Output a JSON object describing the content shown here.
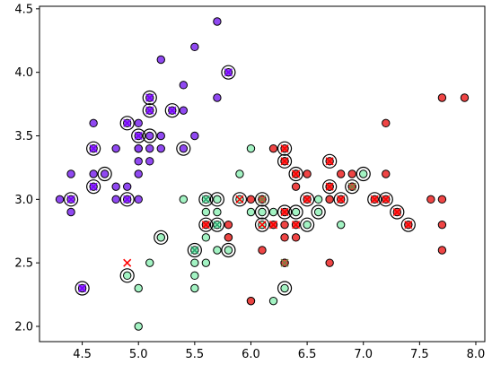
{
  "chart_data": {
    "type": "scatter",
    "title": "",
    "xlabel": "",
    "ylabel": "",
    "xlim": [
      4.12,
      8.08
    ],
    "ylim": [
      1.88,
      4.52
    ],
    "xticks": [
      "4.5",
      "5.0",
      "5.5",
      "6.0",
      "6.5",
      "7.0",
      "7.5",
      "8.0"
    ],
    "yticks": [
      "2.0",
      "2.5",
      "3.0",
      "3.5",
      "4.0",
      "4.5"
    ],
    "grid": false,
    "colors": {
      "purple": "#8a3ff0",
      "green": "#9ef2c0",
      "red": "#ee3b3b",
      "cross_red": "#ff0000",
      "cross_purple": "#7a00ff",
      "cross_green": "#2aa870",
      "cross_olive": "#7f8040",
      "edge": "#000000"
    },
    "series": [
      {
        "class": "purple",
        "values": [
          [
            4.3,
            3.0
          ],
          [
            4.4,
            2.9
          ],
          [
            4.4,
            3.0
          ],
          [
            4.4,
            3.2
          ],
          [
            4.5,
            2.3
          ],
          [
            4.6,
            3.1
          ],
          [
            4.6,
            3.2
          ],
          [
            4.6,
            3.4
          ],
          [
            4.6,
            3.6
          ],
          [
            4.7,
            3.2
          ],
          [
            4.8,
            3.0
          ],
          [
            4.8,
            3.1
          ],
          [
            4.8,
            3.4
          ],
          [
            4.9,
            3.0
          ],
          [
            4.9,
            3.1
          ],
          [
            4.9,
            3.6
          ],
          [
            5.0,
            3.0
          ],
          [
            5.0,
            3.2
          ],
          [
            5.0,
            3.3
          ],
          [
            5.0,
            3.4
          ],
          [
            5.0,
            3.5
          ],
          [
            5.0,
            3.6
          ],
          [
            5.1,
            3.3
          ],
          [
            5.1,
            3.4
          ],
          [
            5.1,
            3.5
          ],
          [
            5.1,
            3.7
          ],
          [
            5.1,
            3.8
          ],
          [
            5.2,
            3.4
          ],
          [
            5.2,
            3.5
          ],
          [
            5.2,
            4.1
          ],
          [
            5.3,
            3.7
          ],
          [
            5.4,
            3.4
          ],
          [
            5.4,
            3.7
          ],
          [
            5.4,
            3.9
          ],
          [
            5.5,
            3.5
          ],
          [
            5.5,
            4.2
          ],
          [
            5.7,
            3.8
          ],
          [
            5.7,
            4.4
          ],
          [
            5.8,
            4.0
          ],
          [
            5.0,
            3.4
          ]
        ]
      },
      {
        "class": "green",
        "values": [
          [
            4.9,
            2.4
          ],
          [
            5.0,
            2.0
          ],
          [
            5.0,
            2.3
          ],
          [
            5.1,
            2.5
          ],
          [
            5.2,
            2.7
          ],
          [
            5.4,
            3.0
          ],
          [
            5.5,
            2.3
          ],
          [
            5.5,
            2.4
          ],
          [
            5.5,
            2.5
          ],
          [
            5.5,
            2.6
          ],
          [
            5.6,
            2.5
          ],
          [
            5.6,
            2.7
          ],
          [
            5.6,
            2.9
          ],
          [
            5.6,
            3.0
          ],
          [
            5.7,
            2.6
          ],
          [
            5.7,
            2.8
          ],
          [
            5.7,
            2.9
          ],
          [
            5.7,
            3.0
          ],
          [
            5.8,
            2.6
          ],
          [
            5.8,
            2.7
          ],
          [
            5.9,
            3.0
          ],
          [
            5.9,
            3.2
          ],
          [
            6.0,
            2.2
          ],
          [
            6.0,
            2.9
          ],
          [
            6.0,
            3.4
          ],
          [
            6.1,
            2.8
          ],
          [
            6.1,
            2.9
          ],
          [
            6.1,
            3.0
          ],
          [
            6.2,
            2.2
          ],
          [
            6.2,
            2.9
          ],
          [
            6.3,
            2.3
          ],
          [
            6.3,
            2.5
          ],
          [
            6.3,
            3.3
          ],
          [
            6.4,
            2.9
          ],
          [
            6.4,
            3.2
          ],
          [
            6.5,
            2.8
          ],
          [
            6.6,
            2.9
          ],
          [
            6.6,
            3.0
          ],
          [
            6.7,
            3.0
          ],
          [
            6.7,
            3.1
          ],
          [
            6.8,
            2.8
          ],
          [
            6.9,
            3.1
          ],
          [
            7.0,
            3.2
          ],
          [
            5.2,
            2.7
          ]
        ]
      },
      {
        "class": "red",
        "values": [
          [
            5.6,
            2.8
          ],
          [
            5.8,
            2.7
          ],
          [
            5.8,
            2.8
          ],
          [
            6.0,
            2.2
          ],
          [
            6.0,
            3.0
          ],
          [
            6.1,
            2.6
          ],
          [
            6.1,
            3.0
          ],
          [
            6.2,
            2.8
          ],
          [
            6.2,
            3.4
          ],
          [
            6.3,
            2.5
          ],
          [
            6.3,
            2.7
          ],
          [
            6.3,
            2.8
          ],
          [
            6.3,
            2.9
          ],
          [
            6.3,
            3.3
          ],
          [
            6.3,
            3.4
          ],
          [
            6.4,
            2.7
          ],
          [
            6.4,
            2.8
          ],
          [
            6.4,
            3.1
          ],
          [
            6.4,
            3.2
          ],
          [
            6.5,
            3.0
          ],
          [
            6.5,
            3.2
          ],
          [
            6.7,
            2.5
          ],
          [
            6.7,
            3.0
          ],
          [
            6.7,
            3.1
          ],
          [
            6.7,
            3.3
          ],
          [
            6.8,
            3.0
          ],
          [
            6.8,
            3.2
          ],
          [
            6.9,
            3.1
          ],
          [
            6.9,
            3.2
          ],
          [
            7.1,
            3.0
          ],
          [
            7.2,
            3.0
          ],
          [
            7.2,
            3.2
          ],
          [
            7.2,
            3.6
          ],
          [
            7.3,
            2.9
          ],
          [
            7.4,
            2.8
          ],
          [
            7.6,
            3.0
          ],
          [
            7.7,
            2.6
          ],
          [
            7.7,
            2.8
          ],
          [
            7.7,
            3.0
          ],
          [
            7.7,
            3.8
          ],
          [
            7.9,
            3.8
          ]
        ]
      }
    ],
    "circled_points": [
      [
        4.4,
        3.0
      ],
      [
        4.5,
        2.3
      ],
      [
        4.6,
        3.1
      ],
      [
        4.6,
        3.4
      ],
      [
        4.7,
        3.2
      ],
      [
        4.9,
        3.0
      ],
      [
        4.9,
        3.6
      ],
      [
        5.0,
        3.5
      ],
      [
        5.1,
        3.5
      ],
      [
        5.1,
        3.7
      ],
      [
        5.1,
        3.8
      ],
      [
        5.3,
        3.7
      ],
      [
        5.4,
        3.4
      ],
      [
        5.8,
        4.0
      ],
      [
        4.9,
        2.4
      ],
      [
        5.2,
        2.7
      ],
      [
        5.5,
        2.6
      ],
      [
        5.6,
        3.0
      ],
      [
        5.7,
        2.8
      ],
      [
        5.7,
        3.0
      ],
      [
        5.8,
        2.6
      ],
      [
        5.9,
        3.0
      ],
      [
        6.1,
        2.9
      ],
      [
        6.1,
        3.0
      ],
      [
        6.3,
        2.3
      ],
      [
        6.4,
        2.9
      ],
      [
        6.5,
        2.8
      ],
      [
        6.6,
        2.9
      ],
      [
        6.9,
        3.1
      ],
      [
        7.0,
        3.2
      ],
      [
        5.6,
        2.8
      ],
      [
        6.1,
        2.8
      ],
      [
        6.3,
        2.9
      ],
      [
        6.3,
        3.3
      ],
      [
        6.3,
        3.4
      ],
      [
        6.4,
        3.2
      ],
      [
        6.5,
        3.0
      ],
      [
        6.7,
        3.1
      ],
      [
        6.7,
        3.3
      ],
      [
        6.8,
        3.0
      ],
      [
        7.1,
        3.0
      ],
      [
        7.2,
        3.0
      ],
      [
        7.3,
        2.9
      ],
      [
        7.4,
        2.8
      ]
    ],
    "cross_markers": [
      {
        "class": "purple",
        "points": [
          [
            4.4,
            3.0
          ],
          [
            4.5,
            2.3
          ],
          [
            4.6,
            3.1
          ],
          [
            4.6,
            3.4
          ],
          [
            4.9,
            3.0
          ],
          [
            4.9,
            3.6
          ],
          [
            5.0,
            3.5
          ],
          [
            5.1,
            3.7
          ],
          [
            5.1,
            3.8
          ],
          [
            5.3,
            3.7
          ],
          [
            5.8,
            4.0
          ]
        ]
      },
      {
        "class": "red",
        "points": [
          [
            4.9,
            2.5
          ],
          [
            5.6,
            2.8
          ],
          [
            5.9,
            3.0
          ],
          [
            6.2,
            2.8
          ],
          [
            6.3,
            2.9
          ],
          [
            6.3,
            3.3
          ],
          [
            6.3,
            3.4
          ],
          [
            6.4,
            3.2
          ],
          [
            6.5,
            3.0
          ],
          [
            6.7,
            3.1
          ],
          [
            6.7,
            3.3
          ],
          [
            6.8,
            3.0
          ],
          [
            7.1,
            3.0
          ],
          [
            7.2,
            3.0
          ],
          [
            7.3,
            2.9
          ],
          [
            7.4,
            2.8
          ],
          [
            6.1,
            2.8
          ],
          [
            6.4,
            2.8
          ],
          [
            6.2,
            2.8
          ]
        ]
      },
      {
        "class": "green",
        "points": [
          [
            5.6,
            3.0
          ],
          [
            5.7,
            2.8
          ],
          [
            5.5,
            2.6
          ]
        ]
      },
      {
        "class": "olive",
        "points": [
          [
            6.1,
            3.0
          ],
          [
            6.3,
            2.5
          ],
          [
            6.9,
            3.1
          ]
        ]
      }
    ]
  }
}
